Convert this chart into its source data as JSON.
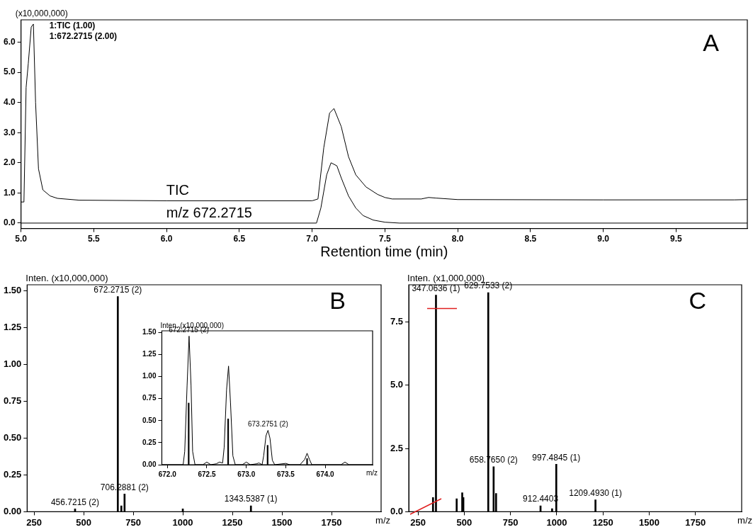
{
  "chart_data": [
    {
      "type": "line",
      "xlabel": "Retention time (min)",
      "ylabel": "(x10,000,000)",
      "legend": false,
      "grid": false,
      "marker": "none",
      "line_style": "solid",
      "annotations": [
        "1:TIC (1.00)",
        "1:672.2715 (2.00)",
        "A"
      ],
      "xlim": [
        5,
        9.99
      ],
      "xticks": [
        {
          "value": 5,
          "label": "5.0"
        },
        5.5,
        {
          "value": 6,
          "label": "6.0"
        },
        6.5,
        {
          "value": 7,
          "label": "7.0"
        },
        7.5,
        {
          "value": 8,
          "label": "8.0"
        },
        8.5,
        {
          "value": 9,
          "label": "9.0"
        },
        9.5
      ],
      "ylim": [
        -0.18,
        6.74
      ],
      "yticks": [
        {
          "value": 0,
          "label": "0.0"
        },
        {
          "value": 1,
          "label": "1.0"
        },
        {
          "value": 2,
          "label": "2.0"
        },
        {
          "value": 3,
          "label": "3.0"
        },
        {
          "value": 4,
          "label": "4.0"
        },
        {
          "value": 5,
          "label": "5.0"
        },
        {
          "value": 6,
          "label": "6.0"
        }
      ],
      "series": [
        {
          "name": "TIC",
          "color": "#000000",
          "x": [
            5.0,
            5.02,
            5.035,
            5.05,
            5.07,
            5.085,
            5.1,
            5.12,
            5.15,
            5.2,
            5.25,
            5.4,
            6.0,
            7.0,
            7.04,
            7.08,
            7.12,
            7.15,
            7.2,
            7.25,
            7.3,
            7.37,
            7.45,
            7.5,
            7.55,
            7.75,
            7.8,
            7.85,
            8.0,
            9.0,
            9.9,
            9.99
          ],
          "values": [
            0.7,
            0.7,
            4.5,
            5.3,
            6.5,
            6.6,
            4.0,
            1.8,
            1.1,
            0.9,
            0.82,
            0.76,
            0.74,
            0.74,
            0.8,
            2.5,
            3.65,
            3.8,
            3.2,
            2.2,
            1.6,
            1.2,
            0.95,
            0.85,
            0.8,
            0.8,
            0.85,
            0.83,
            0.78,
            0.77,
            0.77,
            0.78
          ]
        },
        {
          "name": "m/z 672.2715",
          "color": "#000000",
          "x": [
            5.0,
            7.03,
            7.06,
            7.1,
            7.13,
            7.17,
            7.2,
            7.25,
            7.3,
            7.35,
            7.42,
            7.5,
            7.6,
            9.99
          ],
          "values": [
            0,
            0,
            0.5,
            1.6,
            2.0,
            1.9,
            1.5,
            0.9,
            0.5,
            0.25,
            0.1,
            0.03,
            0,
            0
          ]
        }
      ]
    },
    {
      "type": "bar",
      "xlabel": "m/z",
      "ylabel": "Inten. (x10,000,000)",
      "legend": false,
      "grid": false,
      "annotations": [
        "B",
        {
          "text": "456.7215 (2)",
          "x": 456.7215,
          "y": 0.02
        },
        {
          "text": "672.2715 (2)",
          "x": 672.2715,
          "y": 1.46
        },
        {
          "text": "706.2881 (2)",
          "x": 706.2881,
          "y": 0.12
        },
        {
          "text": "1343.5387 (1)",
          "x": 1343.5387,
          "y": 0.04
        }
      ],
      "xlim": [
        215,
        2000
      ],
      "xticks": [
        250,
        500,
        750,
        1000,
        1250,
        1500,
        1750
      ],
      "ylim": [
        0,
        1.54
      ],
      "yticks": [
        {
          "value": 0,
          "label": "0.00"
        },
        0.25,
        {
          "value": 0.5,
          "label": "0.50"
        },
        0.75,
        {
          "value": 1,
          "label": "1.00"
        },
        1.25,
        {
          "value": 1.5,
          "label": "1.50"
        }
      ],
      "series": [
        {
          "color": "#000000",
          "x": [
            456.7215,
            672.2715,
            690,
            706.2881,
            1000,
            1343.5387
          ],
          "values": [
            0.02,
            1.46,
            0.04,
            0.12,
            0.02,
            0.04
          ]
        }
      ]
    },
    {
      "type": "line",
      "xlabel": "m/z",
      "ylabel": "Inten. (x10,000,000)",
      "legend": false,
      "grid": false,
      "marker": "none",
      "annotations": [
        {
          "text": "672.2715 (2)",
          "x": 672.2715,
          "y": 1.46
        },
        {
          "text": "673.2751 (2)",
          "x": 673.2751,
          "y": 0.39
        }
      ],
      "xlim": [
        671.93,
        674.6
      ],
      "xticks": [
        {
          "value": 672,
          "label": "672.0"
        },
        672.5,
        {
          "value": 673,
          "label": "673.0"
        },
        673.5,
        {
          "value": 674,
          "label": "674.0"
        }
      ],
      "ylim": [
        0,
        1.52
      ],
      "yticks": [
        {
          "value": 0,
          "label": "0.00"
        },
        0.25,
        {
          "value": 0.5,
          "label": "0.50"
        },
        0.75,
        {
          "value": 1,
          "label": "1.00"
        },
        1.25,
        {
          "value": 1.5,
          "label": "1.50"
        }
      ],
      "series": [
        {
          "color": "#000000",
          "x": [
            671.93,
            672.2,
            672.22,
            672.25,
            672.275,
            672.3,
            672.32,
            672.35,
            672.45,
            672.5,
            672.55,
            672.62,
            672.66,
            672.7,
            672.72,
            672.75,
            672.775,
            672.8,
            672.83,
            672.86,
            672.95,
            673.0,
            673.05,
            673.13,
            673.16,
            673.2,
            673.22,
            673.25,
            673.275,
            673.3,
            673.33,
            673.36,
            673.5,
            673.55,
            673.68,
            673.74,
            673.77,
            673.8,
            673.83,
            674.2,
            674.25,
            674.3,
            674.6
          ],
          "values": [
            0,
            0,
            0.15,
            0.9,
            1.46,
            0.9,
            0.15,
            0,
            0,
            0.03,
            0,
            0.01,
            0.03,
            0.02,
            0.2,
            0.85,
            1.12,
            0.7,
            0.1,
            0,
            0,
            0.03,
            0,
            0.01,
            0.02,
            0,
            0.1,
            0.33,
            0.39,
            0.3,
            0.05,
            0,
            0.015,
            0,
            0,
            0.06,
            0.13,
            0.06,
            0,
            0,
            0.03,
            0,
            0
          ]
        },
        {
          "type": "bar",
          "color": "#000000",
          "x": [
            672.27,
            672.77,
            673.27,
            673.77
          ],
          "values": [
            0.7,
            0.52,
            0.22,
            0.07
          ]
        }
      ]
    },
    {
      "type": "bar",
      "xlabel": "m/z",
      "ylabel": "Inten. (x1,000,000)",
      "legend": false,
      "grid": false,
      "annotations": [
        "C",
        {
          "text": "347.0636 (1)",
          "x": 347.0636,
          "y": 8.56
        },
        {
          "text": "629.7533 (2)",
          "x": 629.7533,
          "y": 8.66
        },
        {
          "text": "658.7650 (2)",
          "x": 658.765,
          "y": 1.78
        },
        {
          "text": "912.4403",
          "x": 912.4403,
          "y": 0.23
        },
        {
          "text": "997.4845 (1)",
          "x": 997.4845,
          "y": 1.88
        },
        {
          "text": "1209.4930 (1)",
          "x": 1209.493,
          "y": 0.47
        }
      ],
      "xlim": [
        200,
        2000
      ],
      "xticks": [
        250,
        500,
        750,
        1000,
        1250,
        1500,
        1750
      ],
      "ylim": [
        0,
        8.97
      ],
      "yticks": [
        {
          "value": 0,
          "label": "0.0"
        },
        2.5,
        {
          "value": 5,
          "label": "5.0"
        },
        7.5
      ],
      "series": [
        {
          "color": "#000000",
          "x": [
            331,
            347.0636,
            459,
            489,
            495,
            629.7533,
            658.765,
            672,
            912.4403,
            975,
            997.4845,
            1209.493
          ],
          "values": [
            0.56,
            8.56,
            0.51,
            0.75,
            0.56,
            8.66,
            1.78,
            0.72,
            0.23,
            0.12,
            1.88,
            0.47
          ]
        }
      ]
    }
  ]
}
